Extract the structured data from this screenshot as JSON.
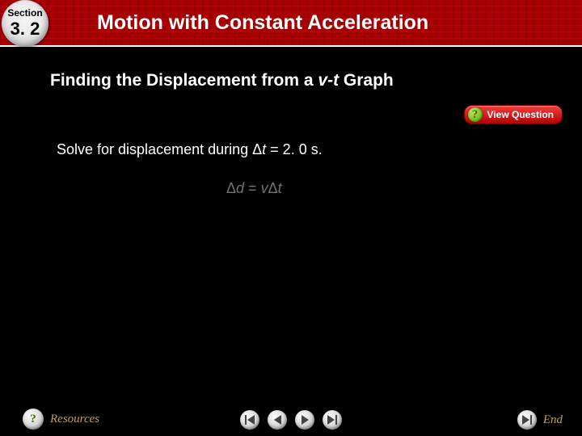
{
  "colors": {
    "header_bg": "#a00014",
    "accent_gold": "#bfa24f",
    "button_face": "#d8d8d8",
    "view_question_bg_top": "#f04040",
    "view_question_bg_bottom": "#b00000",
    "help_green": "#7bbf1f",
    "equation_gray": "#d0d0d2"
  },
  "header": {
    "section_label": "Section",
    "section_number": "3. 2",
    "title": "Motion with Constant Acceleration"
  },
  "content": {
    "subtitle_pre": "Finding the Displacement from a ",
    "subtitle_var": "v-t",
    "subtitle_post": " Graph",
    "body_pre": "Solve for displacement during Δ",
    "body_t": "t",
    "body_post": " = 2. 0 s.",
    "equation_delta": "Δ",
    "equation_d": "d ",
    "equation_eq": "= ",
    "equation_v": "v",
    "equation_dt": "Δ",
    "equation_t2": "t"
  },
  "buttons": {
    "view_question": "View Question",
    "resources": "Resources",
    "end": "End",
    "help_glyph": "?"
  },
  "icons": {
    "help": "help-icon",
    "first": "first-icon",
    "prev": "prev-icon",
    "next": "next-icon",
    "last": "last-icon",
    "end_next": "end-next-icon",
    "question": "question-icon"
  }
}
